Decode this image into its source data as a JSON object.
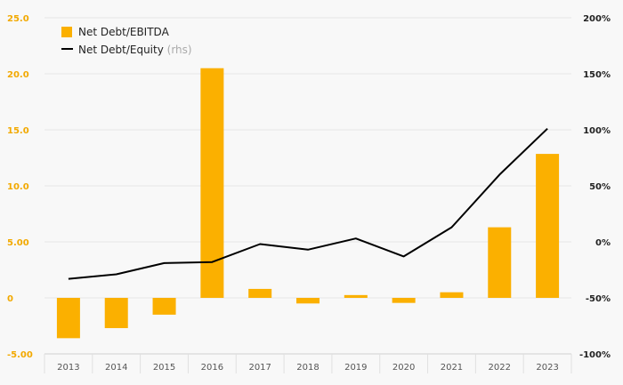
{
  "chart_data": {
    "type": "bar",
    "categories": [
      "2013",
      "2014",
      "2015",
      "2016",
      "2017",
      "2018",
      "2019",
      "2020",
      "2021",
      "2022",
      "2023"
    ],
    "series": [
      {
        "name": "Net Debt/EBITDA",
        "type": "bar",
        "axis": "left",
        "color": "#FBB000",
        "values": [
          -3.6,
          -2.7,
          -1.5,
          20.5,
          0.8,
          -0.5,
          0.25,
          -0.45,
          0.5,
          6.3,
          12.85
        ]
      },
      {
        "name": "Net Debt/Equity",
        "name_suffix": "(rhs)",
        "type": "line",
        "axis": "right",
        "color": "#000000",
        "values": [
          -33,
          -29,
          -19,
          -18,
          -2,
          -7,
          3,
          -13,
          13,
          60,
          101
        ]
      }
    ],
    "left_axis": {
      "range": [
        -5,
        25
      ],
      "ticks": [
        -5,
        0,
        5,
        10,
        15,
        20,
        25
      ],
      "tick_labels": [
        "-5.00",
        "0",
        "5.00",
        "10.0",
        "15.0",
        "20.0",
        "25.0"
      ],
      "color": "#F2A900"
    },
    "right_axis": {
      "range": [
        -100,
        200
      ],
      "tick_labels": [
        "-100%",
        "-50%",
        "0%",
        "50%",
        "100%",
        "150%",
        "200%"
      ]
    },
    "grid": true,
    "legend_position": "top-left"
  }
}
